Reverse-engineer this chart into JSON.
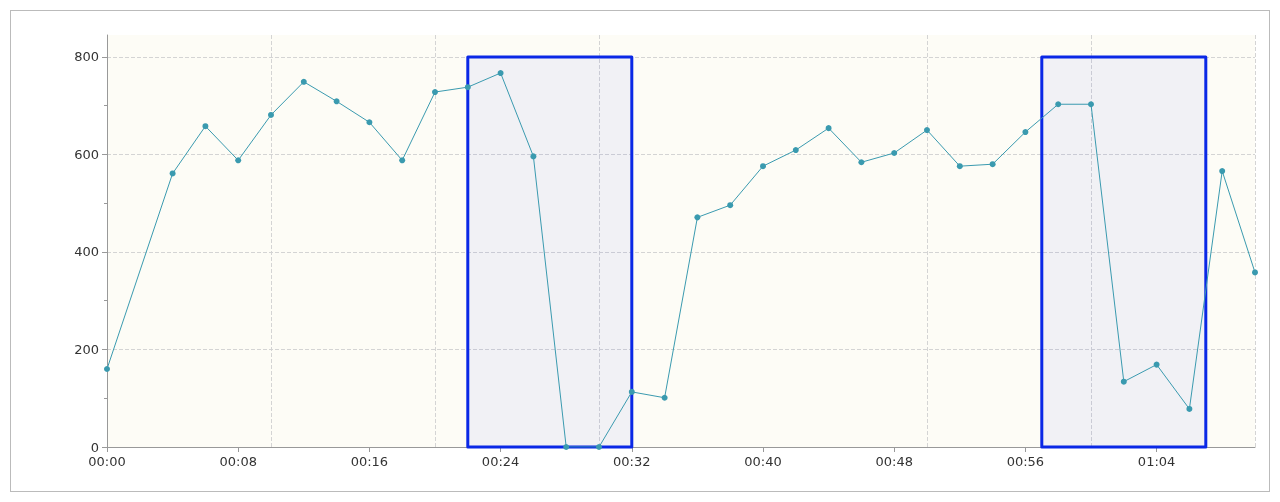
{
  "chart_data": {
    "type": "line",
    "x": [
      0,
      4,
      6,
      8,
      10,
      12,
      14,
      16,
      18,
      20,
      22,
      24,
      26,
      28,
      30,
      32,
      34,
      36,
      38,
      40,
      42,
      44,
      46,
      48,
      50,
      52,
      54,
      56,
      58,
      60,
      62,
      64,
      66,
      68,
      70
    ],
    "series": [
      {
        "color": "#3a9aaf",
        "values": [
          160,
          561,
          658,
          588,
          681,
          749,
          709,
          666,
          588,
          728,
          738,
          767,
          596,
          0,
          0,
          113,
          101,
          471,
          496,
          576,
          609,
          654,
          584,
          603,
          650,
          576,
          580,
          646,
          703,
          703,
          134,
          169,
          78,
          566,
          358
        ]
      }
    ],
    "xlim": [
      0,
      70
    ],
    "xticks": [
      {
        "value": 0,
        "label": "00:00"
      },
      {
        "value": 8,
        "label": "00:08"
      },
      {
        "value": 10,
        "label": null
      },
      {
        "value": 16,
        "label": "00:16"
      },
      {
        "value": 20,
        "label": null
      },
      {
        "value": 24,
        "label": "00:24"
      },
      {
        "value": 30,
        "label": null
      },
      {
        "value": 32,
        "label": "00:32"
      },
      {
        "value": 40,
        "label": "00:40"
      },
      {
        "value": 48,
        "label": "00:48"
      },
      {
        "value": 50,
        "label": null
      },
      {
        "value": 56,
        "label": "00:56"
      },
      {
        "value": 60,
        "label": null
      },
      {
        "value": 64,
        "label": "01:04"
      },
      {
        "value": 70,
        "label": null
      }
    ],
    "ylim": [
      0,
      845
    ],
    "yticks": [
      0,
      200,
      400,
      600,
      800
    ],
    "grid": true,
    "marker": "circle",
    "line_style": "solid",
    "bands": [
      {
        "axis": "x",
        "from": 22,
        "to": 32,
        "color": "#0a28e6"
      },
      {
        "axis": "x",
        "from": 57,
        "to": 67,
        "color": "#0a28e6"
      }
    ]
  }
}
